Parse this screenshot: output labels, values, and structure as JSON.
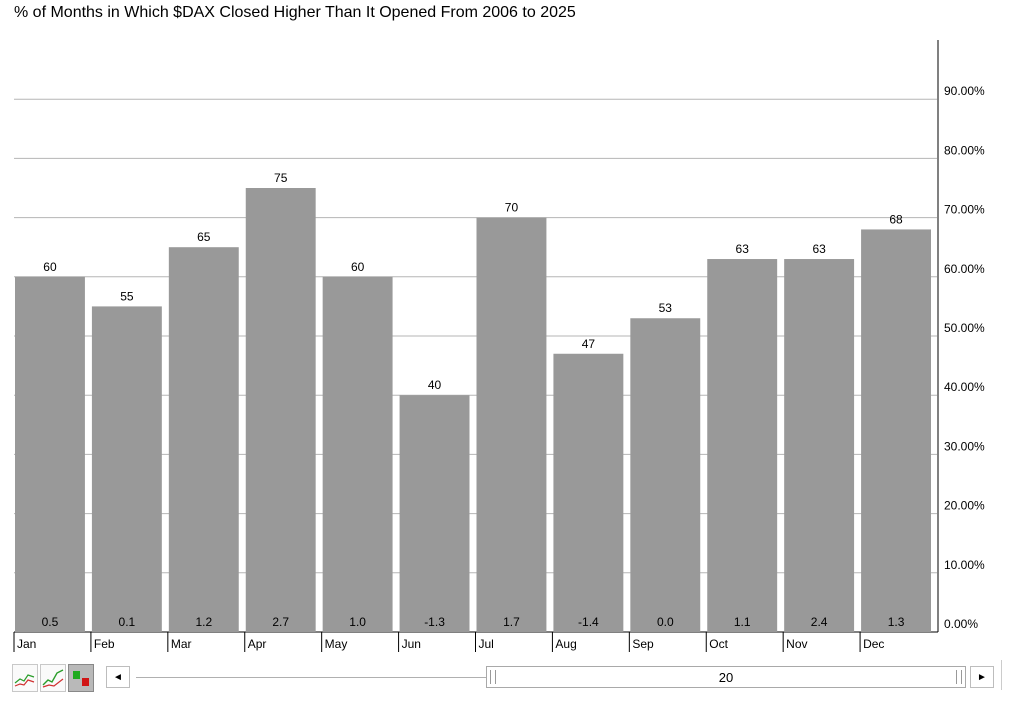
{
  "title": "% of Months in Which $DAX Closed Higher Than It Opened From 2006 to 2025",
  "chart_data": {
    "type": "bar",
    "title": "% of Months in Which $DAX Closed Higher Than It Opened From 2006 to 2025",
    "categories": [
      "Jan",
      "Feb",
      "Mar",
      "Apr",
      "May",
      "Jun",
      "Jul",
      "Aug",
      "Sep",
      "Oct",
      "Nov",
      "Dec"
    ],
    "values": [
      60,
      55,
      65,
      75,
      60,
      40,
      70,
      47,
      53,
      63,
      63,
      68
    ],
    "bar_bottom_labels": [
      "0.5",
      "0.1",
      "1.2",
      "2.7",
      "1.0",
      "-1.3",
      "1.7",
      "-1.4",
      "0.0",
      "1.1",
      "2.4",
      "1.3"
    ],
    "y_ticks": [
      "0.00%",
      "10.00%",
      "20.00%",
      "30.00%",
      "40.00%",
      "50.00%",
      "60.00%",
      "70.00%",
      "80.00%",
      "90.00%"
    ],
    "ylim": [
      0,
      100
    ],
    "y_axis_side": "right",
    "grid": true,
    "bar_color": "#999999",
    "xlabel": "",
    "ylabel": ""
  },
  "controls": {
    "period_value": "20",
    "left_arrow": "◄",
    "right_arrow": "►"
  }
}
